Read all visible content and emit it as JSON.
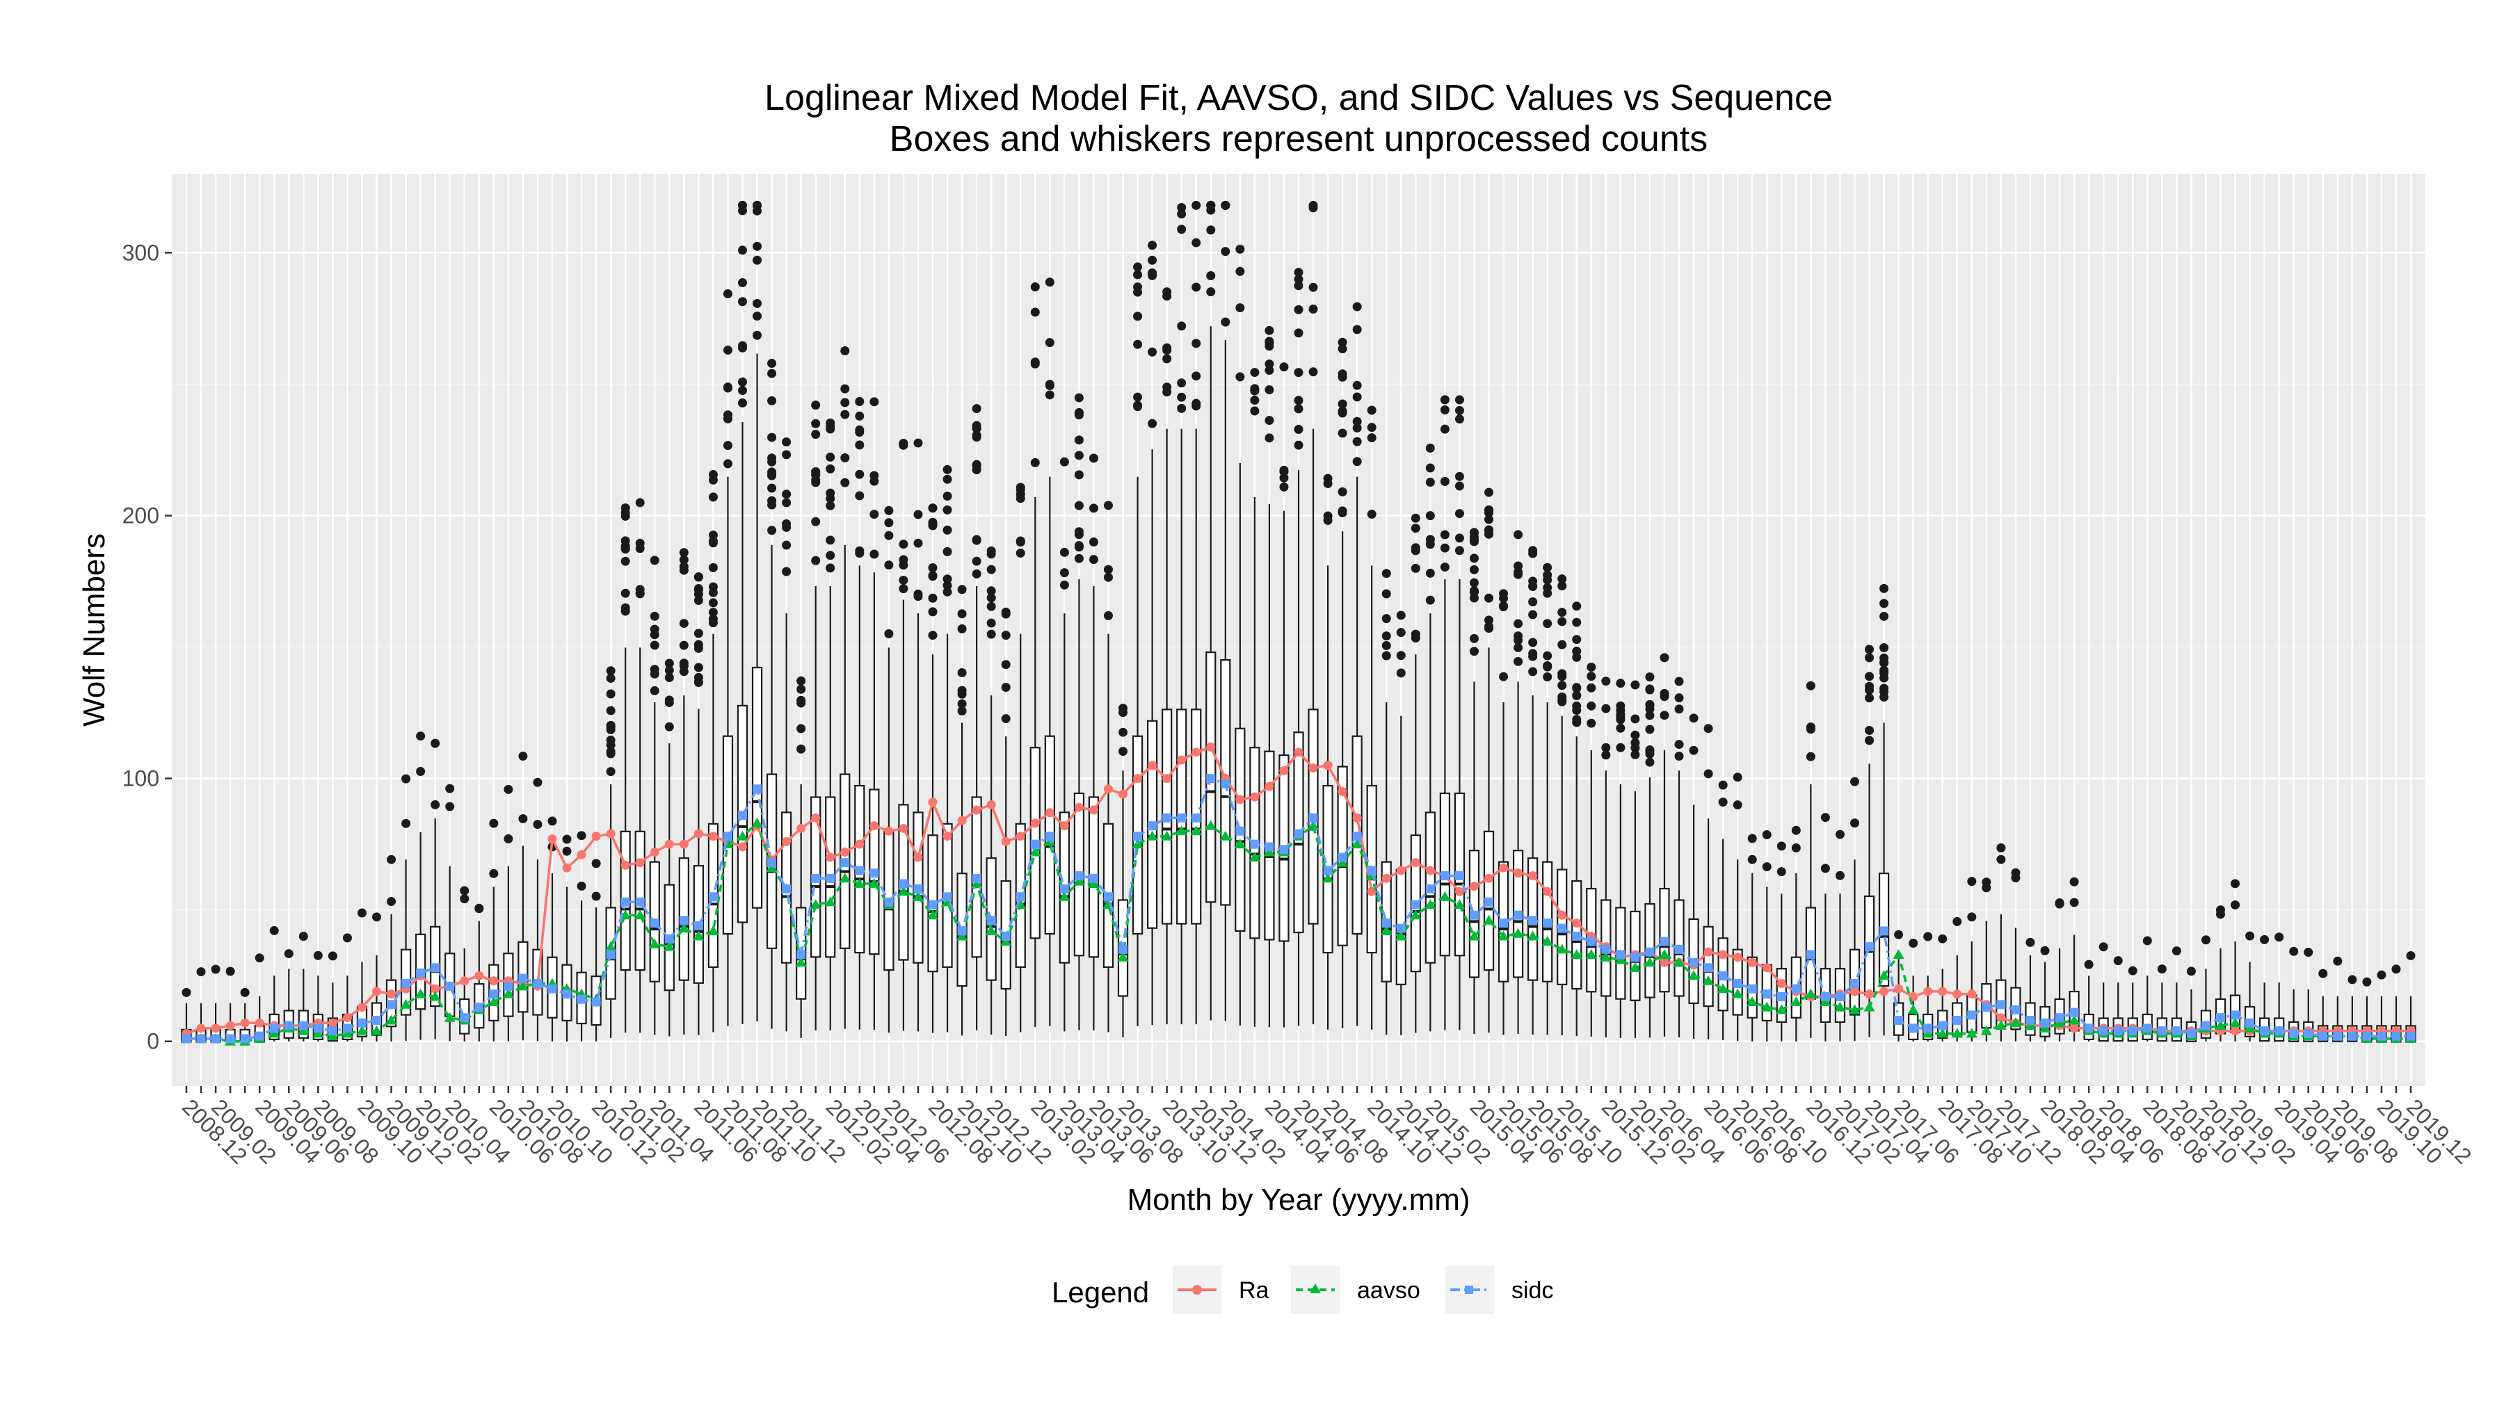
{
  "chart_data": {
    "type": "box+line",
    "title": "Loglinear Mixed Model Fit, AAVSO, and SIDC Values vs Sequence",
    "subtitle": "Boxes and whiskers represent unprocessed counts",
    "xlabel": "Month by Year (yyyy.mm)",
    "ylabel": "Wolf Numbers",
    "ylim": [
      -17,
      330
    ],
    "yticks": [
      0,
      100,
      200,
      300
    ],
    "grid": true,
    "legend": {
      "title": "Legend",
      "placement": "bottom"
    },
    "x_start": "2008.12",
    "x_end": "2019.12",
    "x_labels": [
      "2008.12",
      "2009.02",
      "2009.04",
      "2009.06",
      "2009.08",
      "2009.10",
      "2009.12",
      "2010.02",
      "2010.04",
      "2010.06",
      "2010.08",
      "2010.10",
      "2010.12",
      "2011.02",
      "2011.04",
      "2011.06",
      "2011.08",
      "2011.10",
      "2011.12",
      "2012.02",
      "2012.04",
      "2012.06",
      "2012.08",
      "2012.10",
      "2012.12",
      "2013.02",
      "2013.04",
      "2013.06",
      "2013.08",
      "2013.10",
      "2013.12",
      "2014.02",
      "2014.04",
      "2014.06",
      "2014.08",
      "2014.10",
      "2014.12",
      "2015.02",
      "2015.04",
      "2015.06",
      "2015.08",
      "2015.10",
      "2015.12",
      "2016.02",
      "2016.04",
      "2016.06",
      "2016.08",
      "2016.10",
      "2016.12",
      "2017.02",
      "2017.04",
      "2017.06",
      "2017.08",
      "2017.10",
      "2017.12",
      "2018.02",
      "2018.04",
      "2018.06",
      "2018.08",
      "2018.10",
      "2018.12",
      "2019.02",
      "2019.04",
      "2019.06",
      "2019.08",
      "2019.10",
      "2019.12"
    ],
    "series": [
      {
        "name": "Ra",
        "color": "#F8766D",
        "marker": "circle",
        "dash": "solid",
        "values": [
          3,
          5,
          5,
          6,
          7,
          7,
          6,
          6,
          6,
          7,
          7,
          9,
          13,
          19,
          18,
          20,
          25,
          20,
          21,
          23,
          25,
          23,
          23,
          22,
          21,
          77,
          66,
          71,
          78,
          79,
          67,
          68,
          72,
          75,
          75,
          79,
          78,
          76,
          74,
          82,
          69,
          76,
          81,
          85,
          70,
          72,
          75,
          82,
          80,
          81,
          70,
          91,
          78,
          84,
          88,
          90,
          76,
          78,
          83,
          87,
          82,
          89,
          88,
          96,
          94,
          100,
          105,
          100,
          107,
          110,
          112,
          100,
          92,
          93,
          97,
          103,
          110,
          104,
          105,
          95,
          85,
          57,
          62,
          65,
          68,
          65,
          63,
          57,
          59,
          62,
          66,
          64,
          63,
          57,
          48,
          45,
          40,
          36,
          32,
          33,
          34,
          30,
          30,
          29,
          34,
          33,
          32,
          30,
          28,
          22,
          19,
          17,
          17,
          18,
          19,
          18,
          19,
          20,
          17,
          19,
          19,
          18,
          18,
          14,
          9,
          7,
          6,
          6,
          6,
          5,
          5,
          5,
          5,
          5,
          5,
          4,
          4,
          4,
          4,
          4,
          4,
          4,
          4,
          4,
          4,
          4,
          4,
          4,
          4,
          4,
          4,
          4,
          4
        ]
      },
      {
        "name": "aavso",
        "color": "#00BA38",
        "marker": "triangle",
        "dash": "dashed",
        "values": [
          1,
          1,
          1,
          0,
          0,
          1,
          3,
          5,
          4,
          3,
          2,
          3,
          4,
          4,
          8,
          14,
          18,
          17,
          9,
          8,
          12,
          15,
          18,
          21,
          22,
          22,
          20,
          18,
          16,
          36,
          48,
          48,
          37,
          36,
          43,
          40,
          42,
          75,
          78,
          83,
          66,
          58,
          30,
          52,
          53,
          62,
          60,
          60,
          52,
          57,
          55,
          48,
          53,
          40,
          60,
          42,
          38,
          52,
          72,
          76,
          55,
          61,
          60,
          52,
          32,
          75,
          78,
          78,
          80,
          80,
          82,
          78,
          75,
          70,
          72,
          72,
          78,
          82,
          62,
          68,
          75,
          63,
          42,
          40,
          48,
          52,
          55,
          52,
          40,
          46,
          40,
          41,
          40,
          38,
          35,
          33,
          33,
          32,
          31,
          28,
          30,
          33,
          30,
          25,
          23,
          20,
          18,
          15,
          13,
          12,
          15,
          18,
          15,
          13,
          12,
          13,
          25,
          33,
          12,
          3,
          3,
          3,
          3,
          4,
          6,
          7,
          6,
          5,
          7,
          8,
          4,
          3,
          3,
          3,
          4,
          3,
          3,
          2,
          5,
          6,
          7,
          5,
          3,
          3,
          2,
          2,
          2,
          2,
          2,
          1,
          1,
          1,
          1
        ]
      },
      {
        "name": "sidc",
        "color": "#619CFF",
        "marker": "square",
        "dash": "dotdash",
        "values": [
          1,
          1,
          1,
          1,
          1,
          2,
          5,
          6,
          6,
          5,
          4,
          5,
          7,
          8,
          14,
          22,
          26,
          28,
          21,
          9,
          13,
          18,
          21,
          24,
          22,
          20,
          18,
          16,
          15,
          33,
          53,
          53,
          45,
          39,
          46,
          44,
          55,
          78,
          86,
          96,
          68,
          58,
          33,
          62,
          62,
          68,
          65,
          64,
          53,
          60,
          58,
          52,
          55,
          42,
          62,
          46,
          40,
          55,
          75,
          78,
          58,
          63,
          62,
          55,
          35,
          78,
          82,
          85,
          85,
          85,
          100,
          98,
          80,
          75,
          74,
          73,
          79,
          85,
          65,
          70,
          78,
          65,
          45,
          43,
          52,
          58,
          63,
          63,
          48,
          53,
          45,
          48,
          46,
          45,
          43,
          40,
          38,
          35,
          33,
          32,
          34,
          38,
          35,
          30,
          28,
          25,
          22,
          20,
          18,
          17,
          20,
          33,
          17,
          17,
          22,
          36,
          42,
          8,
          5,
          5,
          6,
          8,
          10,
          13,
          14,
          12,
          8,
          7,
          9,
          11,
          5,
          4,
          4,
          4,
          5,
          4,
          4,
          3,
          6,
          9,
          10,
          7,
          4,
          4,
          3,
          3,
          2,
          2,
          2,
          2,
          2,
          2,
          2
        ]
      }
    ]
  }
}
